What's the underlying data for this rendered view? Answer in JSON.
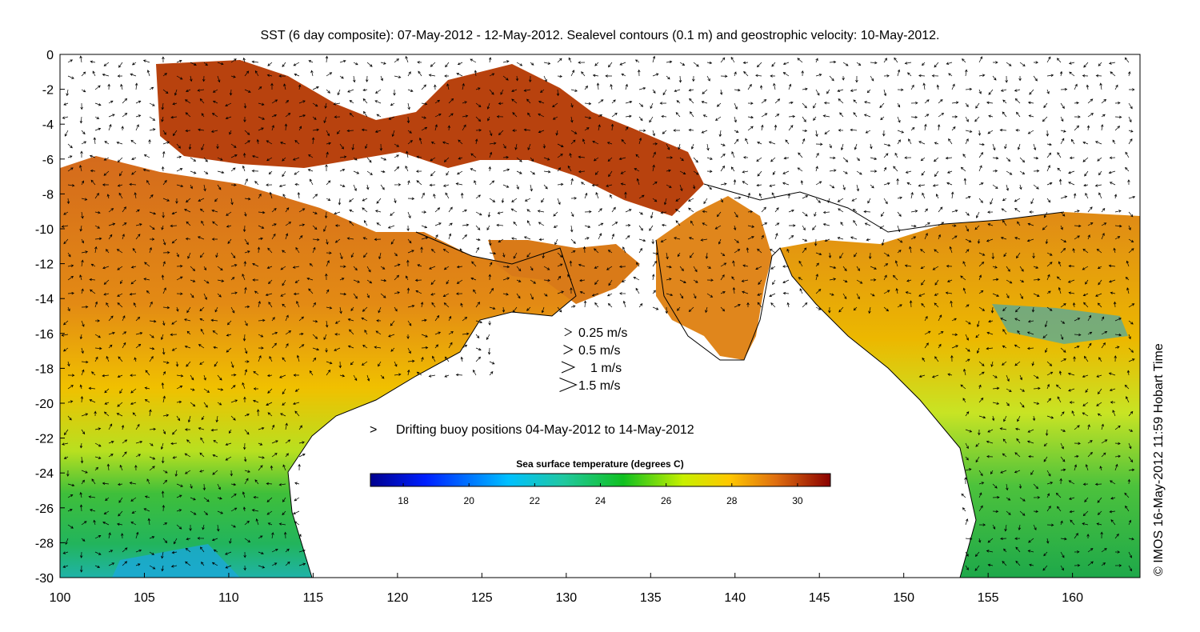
{
  "title": "SST (6 day composite): 07-May-2012 - 12-May-2012. Sealevel contours (0.1 m) and geostrophic velocity: 10-May-2012.",
  "stamp": "© IMOS 16-May-2012 11:59 Hobart Time",
  "axes": {
    "x_ticks": [
      "100",
      "105",
      "110",
      "115",
      "120",
      "125",
      "130",
      "135",
      "140",
      "145",
      "150",
      "155",
      "160"
    ],
    "y_ticks": [
      "0",
      "-2",
      "-4",
      "-6",
      "-8",
      "-10",
      "-12",
      "-14",
      "-16",
      "-18",
      "-20",
      "-22",
      "-24",
      "-26",
      "-28",
      "-30"
    ],
    "xlim": [
      100,
      164
    ],
    "ylim": [
      -30,
      0
    ]
  },
  "velocity_legend": [
    {
      "label": "0.25 m/s",
      "speed": 0.25
    },
    {
      "label": "0.5 m/s",
      "speed": 0.5
    },
    {
      "label": "1 m/s",
      "speed": 1
    },
    {
      "label": "1.5 m/s",
      "speed": 1.5
    }
  ],
  "buoy_legend": {
    "symbol": ">",
    "label": "Drifting buoy positions 04-May-2012 to 14-May-2012",
    "color": "#e000e0"
  },
  "colorbar": {
    "title": "Sea surface temperature (degrees C)",
    "range": [
      17,
      31
    ],
    "ticks": [
      "18",
      "20",
      "22",
      "24",
      "26",
      "28",
      "30"
    ]
  },
  "colors": {
    "land": "#ffffff",
    "warm": "#d2691e",
    "hot": "#a52a0a",
    "mid": "#e8b000",
    "cool": "#2fb43c",
    "cold": "#19b4c8"
  }
}
